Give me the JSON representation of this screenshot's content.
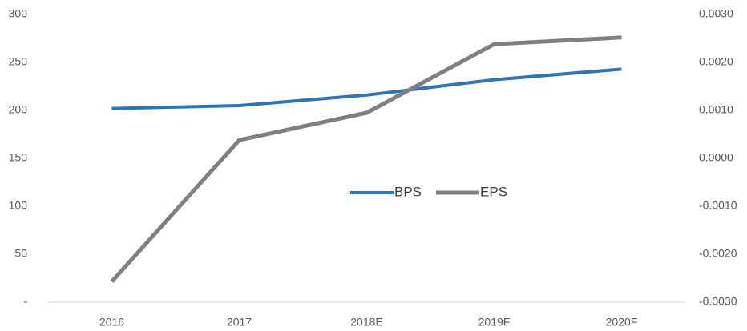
{
  "chart_data": {
    "type": "line",
    "categories": [
      "2016",
      "2017",
      "2018E",
      "2019F",
      "2020F"
    ],
    "series": [
      {
        "name": "BPS",
        "color": "#2e75b6",
        "values": [
          202,
          205,
          216,
          232,
          243
        ]
      },
      {
        "name": "EPS",
        "color": "#808080",
        "axis": "y2",
        "values": [
          -0.00257,
          0.00038,
          0.00095,
          0.00238,
          0.00252
        ]
      }
    ],
    "ylim": [
      0,
      300
    ],
    "yticks": [
      {
        "value": 0,
        "label": "-"
      },
      50,
      100,
      150,
      200,
      250,
      300
    ],
    "y2lim": [
      -0.003,
      0.003
    ],
    "y2ticks": [
      {
        "value": -0.003,
        "label": "-0.0030"
      },
      {
        "value": -0.002,
        "label": "-0.0020"
      },
      {
        "value": -0.001,
        "label": "-0.0010"
      },
      {
        "value": 0,
        "label": "0.0000"
      },
      {
        "value": 0.001,
        "label": "0.0010"
      },
      {
        "value": 0.002,
        "label": "0.0020"
      },
      {
        "value": 0.003,
        "label": "0.0030"
      }
    ],
    "legend": "center"
  }
}
